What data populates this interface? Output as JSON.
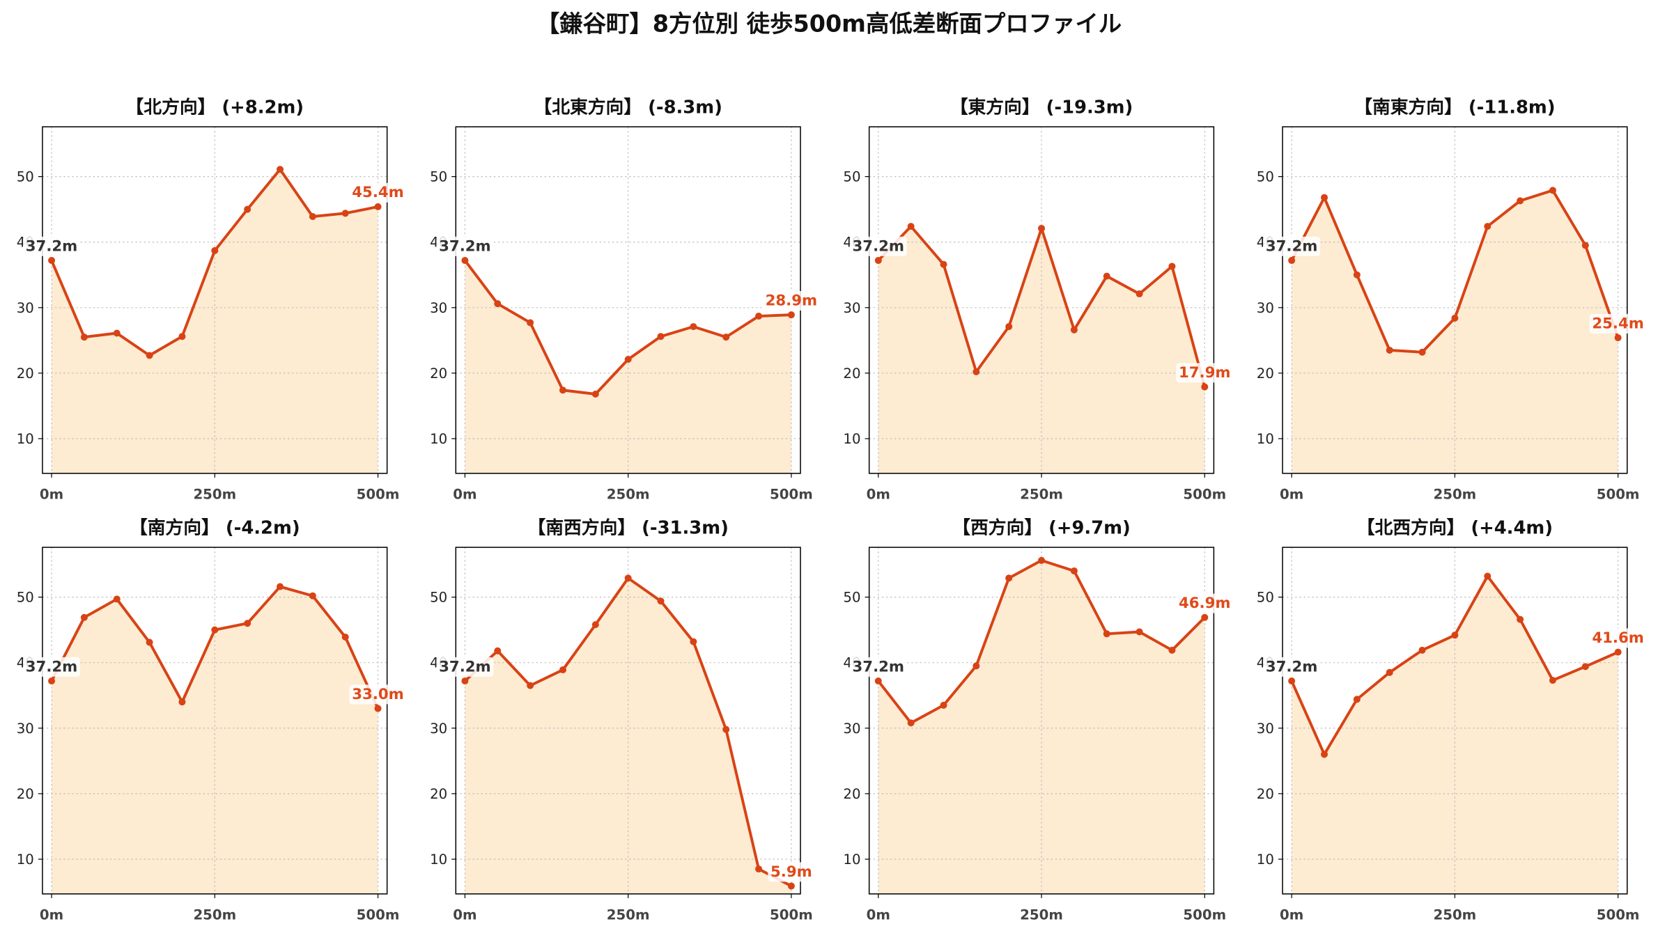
{
  "title": "【鎌谷町】8方位別 徒歩500m高低差断面プロファイル",
  "colors": {
    "line": "#d84315",
    "marker": "#d84315",
    "fill": "#fdebd2",
    "start_label": "#333333",
    "end_label": "#e04a1a",
    "grid": "#bdbdbd",
    "label_box": "#ffffff",
    "spine": "#000000"
  },
  "chart_data": [
    {
      "type": "area",
      "title": "【北方向】 (+8.2m)",
      "x": [
        0,
        50,
        100,
        150,
        200,
        250,
        300,
        350,
        400,
        450,
        500
      ],
      "y": [
        37.2,
        25.5,
        26.1,
        22.7,
        25.6,
        38.7,
        45.0,
        51.1,
        43.9,
        44.4,
        45.4
      ],
      "xticks": [
        0,
        250,
        500
      ],
      "xtick_labels": [
        "0m",
        "250m",
        "500m"
      ],
      "yticks": [
        10,
        20,
        30,
        40,
        50
      ],
      "ytick_labels": [
        "10",
        "20",
        "30",
        "40",
        "50"
      ],
      "xlim": [
        -14,
        514
      ],
      "ylim": [
        4.7,
        57.6
      ],
      "grid": true,
      "markers": true,
      "start_label": "37.2m",
      "end_label": "45.4m"
    },
    {
      "type": "area",
      "title": "【北東方向】 (-8.3m)",
      "x": [
        0,
        50,
        100,
        150,
        200,
        250,
        300,
        350,
        400,
        450,
        500
      ],
      "y": [
        37.2,
        30.6,
        27.7,
        17.4,
        16.8,
        22.1,
        25.6,
        27.1,
        25.5,
        28.7,
        28.9
      ],
      "xticks": [
        0,
        250,
        500
      ],
      "xtick_labels": [
        "0m",
        "250m",
        "500m"
      ],
      "yticks": [
        10,
        20,
        30,
        40,
        50
      ],
      "ytick_labels": [
        "10",
        "20",
        "30",
        "40",
        "50"
      ],
      "xlim": [
        -14,
        514
      ],
      "ylim": [
        4.7,
        57.6
      ],
      "grid": true,
      "markers": true,
      "start_label": "37.2m",
      "end_label": "28.9m"
    },
    {
      "type": "area",
      "title": "【東方向】 (-19.3m)",
      "x": [
        0,
        50,
        100,
        150,
        200,
        250,
        300,
        350,
        400,
        450,
        500
      ],
      "y": [
        37.2,
        42.4,
        36.6,
        20.2,
        27.1,
        42.1,
        26.6,
        34.8,
        32.1,
        36.3,
        17.9
      ],
      "xticks": [
        0,
        250,
        500
      ],
      "xtick_labels": [
        "0m",
        "250m",
        "500m"
      ],
      "yticks": [
        10,
        20,
        30,
        40,
        50
      ],
      "ytick_labels": [
        "10",
        "20",
        "30",
        "40",
        "50"
      ],
      "xlim": [
        -14,
        514
      ],
      "ylim": [
        4.7,
        57.6
      ],
      "grid": true,
      "markers": true,
      "start_label": "37.2m",
      "end_label": "17.9m"
    },
    {
      "type": "area",
      "title": "【南東方向】 (-11.8m)",
      "x": [
        0,
        50,
        100,
        150,
        200,
        250,
        300,
        350,
        400,
        450,
        500
      ],
      "y": [
        37.2,
        46.8,
        35.0,
        23.5,
        23.2,
        28.4,
        42.4,
        46.3,
        47.9,
        39.5,
        25.4
      ],
      "xticks": [
        0,
        250,
        500
      ],
      "xtick_labels": [
        "0m",
        "250m",
        "500m"
      ],
      "yticks": [
        10,
        20,
        30,
        40,
        50
      ],
      "ytick_labels": [
        "10",
        "20",
        "30",
        "40",
        "50"
      ],
      "xlim": [
        -14,
        514
      ],
      "ylim": [
        4.7,
        57.6
      ],
      "grid": true,
      "markers": true,
      "start_label": "37.2m",
      "end_label": "25.4m"
    },
    {
      "type": "area",
      "title": "【南方向】 (-4.2m)",
      "x": [
        0,
        50,
        100,
        150,
        200,
        250,
        300,
        350,
        400,
        450,
        500
      ],
      "y": [
        37.2,
        46.9,
        49.7,
        43.1,
        34.0,
        45.0,
        46.0,
        51.6,
        50.2,
        43.9,
        33.0
      ],
      "xticks": [
        0,
        250,
        500
      ],
      "xtick_labels": [
        "0m",
        "250m",
        "500m"
      ],
      "yticks": [
        10,
        20,
        30,
        40,
        50
      ],
      "ytick_labels": [
        "10",
        "20",
        "30",
        "40",
        "50"
      ],
      "xlim": [
        -14,
        514
      ],
      "ylim": [
        4.7,
        57.6
      ],
      "grid": true,
      "markers": true,
      "start_label": "37.2m",
      "end_label": "33.0m"
    },
    {
      "type": "area",
      "title": "【南西方向】 (-31.3m)",
      "x": [
        0,
        50,
        100,
        150,
        200,
        250,
        300,
        350,
        400,
        450,
        500
      ],
      "y": [
        37.2,
        41.8,
        36.5,
        38.9,
        45.8,
        52.9,
        49.4,
        43.2,
        29.8,
        8.5,
        5.9
      ],
      "xticks": [
        0,
        250,
        500
      ],
      "xtick_labels": [
        "0m",
        "250m",
        "500m"
      ],
      "yticks": [
        10,
        20,
        30,
        40,
        50
      ],
      "ytick_labels": [
        "10",
        "20",
        "30",
        "40",
        "50"
      ],
      "xlim": [
        -14,
        514
      ],
      "ylim": [
        4.7,
        57.6
      ],
      "grid": true,
      "markers": true,
      "start_label": "37.2m",
      "end_label": "5.9m"
    },
    {
      "type": "area",
      "title": "【西方向】 (+9.7m)",
      "x": [
        0,
        50,
        100,
        150,
        200,
        250,
        300,
        350,
        400,
        450,
        500
      ],
      "y": [
        37.2,
        30.8,
        33.5,
        39.5,
        52.9,
        55.6,
        54.0,
        44.4,
        44.7,
        41.9,
        46.9
      ],
      "xticks": [
        0,
        250,
        500
      ],
      "xtick_labels": [
        "0m",
        "250m",
        "500m"
      ],
      "yticks": [
        10,
        20,
        30,
        40,
        50
      ],
      "ytick_labels": [
        "10",
        "20",
        "30",
        "40",
        "50"
      ],
      "xlim": [
        -14,
        514
      ],
      "ylim": [
        4.7,
        57.6
      ],
      "grid": true,
      "markers": true,
      "start_label": "37.2m",
      "end_label": "46.9m"
    },
    {
      "type": "area",
      "title": "【北西方向】 (+4.4m)",
      "x": [
        0,
        50,
        100,
        150,
        200,
        250,
        300,
        350,
        400,
        450,
        500
      ],
      "y": [
        37.2,
        26.0,
        34.4,
        38.5,
        41.9,
        44.2,
        53.2,
        46.6,
        37.3,
        39.4,
        41.6
      ],
      "xticks": [
        0,
        250,
        500
      ],
      "xtick_labels": [
        "0m",
        "250m",
        "500m"
      ],
      "yticks": [
        10,
        20,
        30,
        40,
        50
      ],
      "ytick_labels": [
        "10",
        "20",
        "30",
        "40",
        "50"
      ],
      "xlim": [
        -14,
        514
      ],
      "ylim": [
        4.7,
        57.6
      ],
      "grid": true,
      "markers": true,
      "start_label": "37.2m",
      "end_label": "41.6m"
    }
  ]
}
